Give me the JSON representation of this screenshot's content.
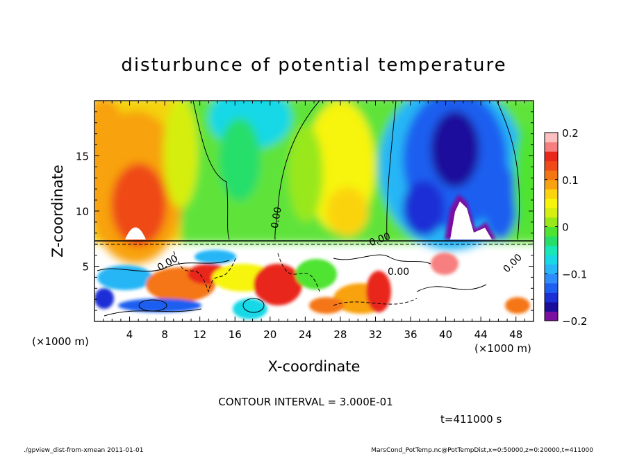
{
  "chart_data": {
    "type": "heatmap",
    "title": "disturbunce of potential temperature",
    "xlabel": "X-coordinate",
    "ylabel": "Z-coordinate",
    "x_unit_left": "(×1000 m)",
    "x_unit_right": "(×1000 m)",
    "xlim": [
      0,
      50
    ],
    "ylim": [
      0,
      20
    ],
    "x_ticks": [
      4,
      8,
      12,
      16,
      20,
      24,
      28,
      32,
      36,
      40,
      44,
      48
    ],
    "y_ticks": [
      5,
      10,
      15
    ],
    "colorbar": {
      "min": -0.2,
      "max": 0.2,
      "tick_labels": [
        "0.2",
        "0.1",
        "0",
        "−0.1",
        "−0.2"
      ],
      "tick_values": [
        0.2,
        0.1,
        0,
        -0.1,
        -0.2
      ],
      "colors": [
        "#7a0fa0",
        "#1b0d9c",
        "#1c2fd6",
        "#1f5ff0",
        "#2f8dfb",
        "#27b6f6",
        "#19d8e6",
        "#17e8b5",
        "#27de6a",
        "#4fe332",
        "#98e81a",
        "#d6ee10",
        "#f7f40c",
        "#fbd30e",
        "#f8a20f",
        "#f47612",
        "#ef4a18",
        "#e9281c",
        "#f77f7f",
        "#fcc0c0"
      ]
    },
    "contour_labels": [
      "0.00",
      "0.00",
      "0.00",
      "0.00",
      "0.00"
    ],
    "contour_interval_text": "CONTOUR INTERVAL = 3.000E-01",
    "time_text": "t=411000 s"
  },
  "footer": {
    "left": "./gpview_dist-from-xmean  2011-01-01",
    "right": "MarsCond_PotTemp.nc@PotTempDist,x=0:50000,z=0:20000,t=411000"
  }
}
